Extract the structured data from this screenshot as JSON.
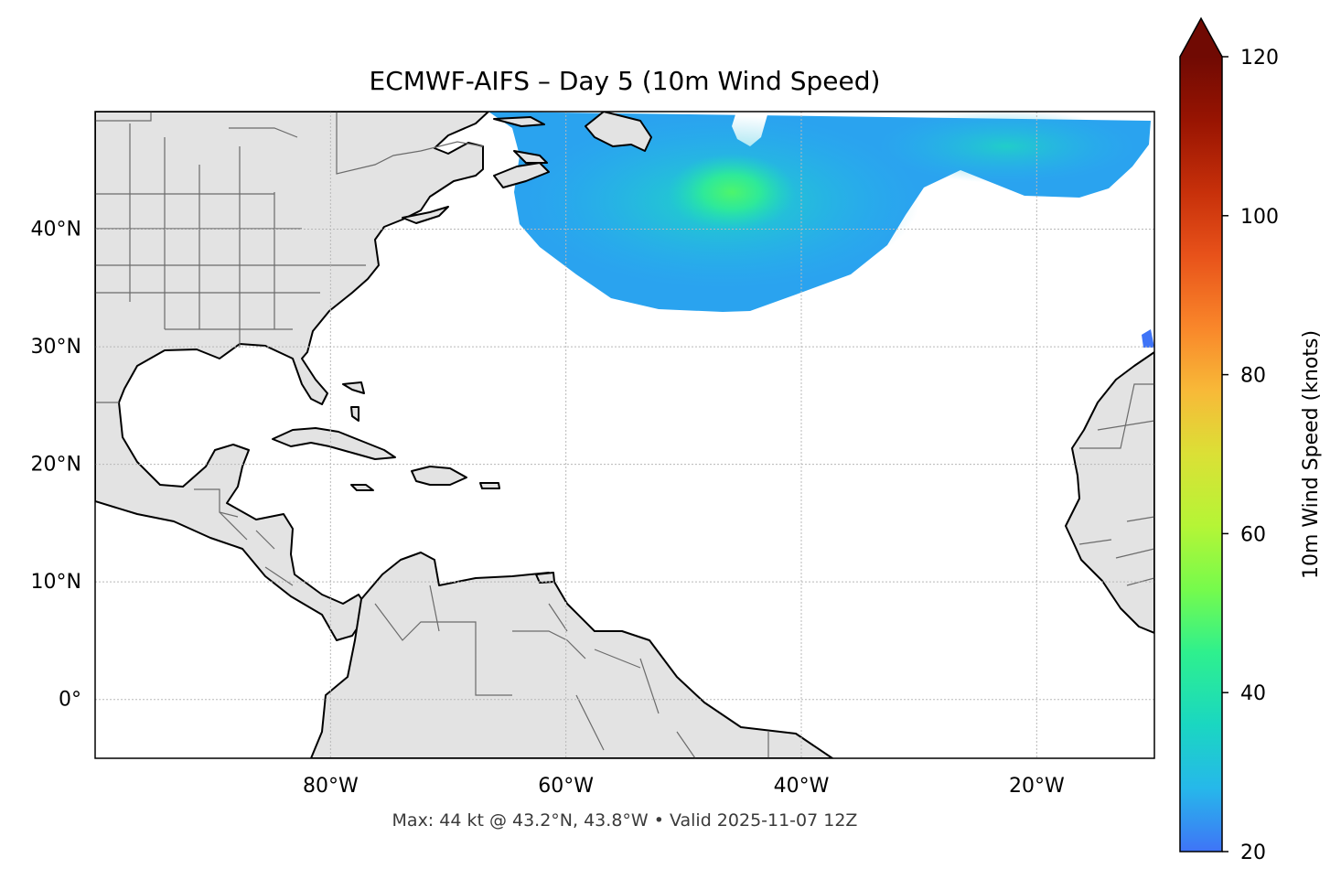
{
  "title": "ECMWF-AIFS – Day 5 (10m Wind Speed)",
  "footer": "Max: 44 kt @ 43.2°N, 43.8°W • Valid 2025-11-07 12Z",
  "map": {
    "extent_lon": [
      -100,
      -10
    ],
    "extent_lat": [
      -5,
      50
    ],
    "lat_ticks": [
      {
        "value": 40,
        "label": "40°N"
      },
      {
        "value": 30,
        "label": "30°N"
      },
      {
        "value": 20,
        "label": "20°N"
      },
      {
        "value": 10,
        "label": "10°N"
      },
      {
        "value": 0,
        "label": "0°"
      }
    ],
    "lon_ticks": [
      {
        "value": -80,
        "label": "80°W"
      },
      {
        "value": -60,
        "label": "60°W"
      },
      {
        "value": -40,
        "label": "40°W"
      },
      {
        "value": -20,
        "label": "20°W"
      }
    ],
    "colors": {
      "land": "#e3e3e3",
      "ocean": "#ffffff",
      "coastline": "#000000",
      "borders": "#6b6b6b",
      "gridline": "#b8b8b8"
    },
    "wind_max": {
      "value_kt": 44,
      "lat": 43.2,
      "lon": -43.8
    }
  },
  "colorbar": {
    "label": "10m Wind Speed (knots)",
    "range": [
      20,
      120
    ],
    "extend": "max",
    "ticks": [
      {
        "value": 20,
        "label": "20"
      },
      {
        "value": 40,
        "label": "40"
      },
      {
        "value": 60,
        "label": "60"
      },
      {
        "value": 80,
        "label": "80"
      },
      {
        "value": 100,
        "label": "100"
      },
      {
        "value": 120,
        "label": "120"
      }
    ],
    "colormap": "turbo",
    "colormap_stops": [
      "#3f74f7",
      "#26b8ea",
      "#1ad7c1",
      "#2ef08e",
      "#76fb4c",
      "#b5f536",
      "#dbe036",
      "#f8b938",
      "#f9862a",
      "#e8521a",
      "#c7300a",
      "#981402",
      "#700a03"
    ]
  }
}
